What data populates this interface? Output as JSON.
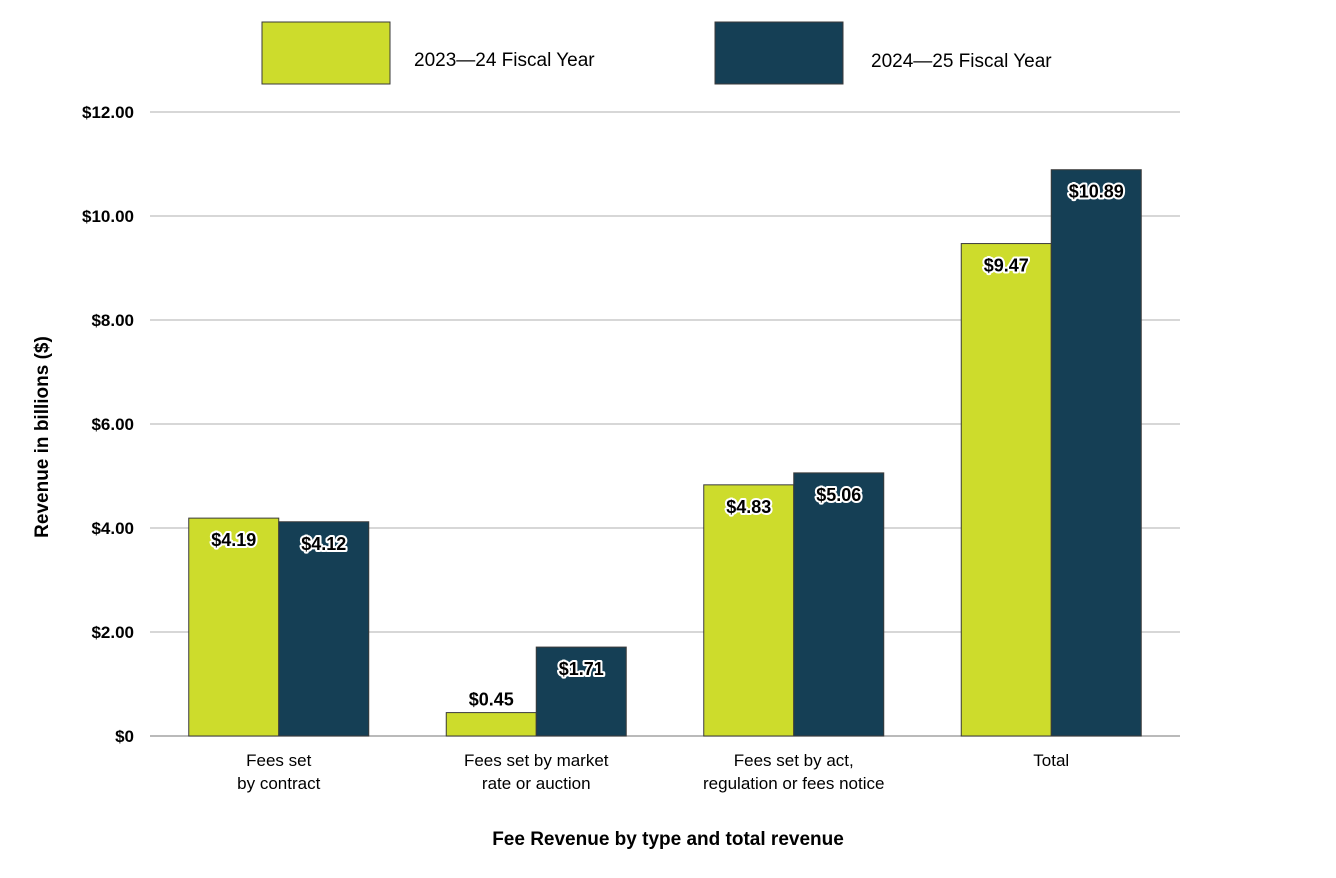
{
  "chart_data": {
    "type": "bar",
    "categories": [
      [
        "Fees set",
        "by contract"
      ],
      [
        "Fees set by market",
        "rate or auction"
      ],
      [
        "Fees set by act,",
        "regulation or fees notice"
      ],
      [
        "Total"
      ]
    ],
    "series": [
      {
        "name": "2023—24 Fiscal Year",
        "color": "#cddc2c",
        "values": [
          4.19,
          0.45,
          4.83,
          9.47
        ],
        "labels": [
          "$4.19",
          "$0.45",
          "$4.83",
          "$9.47"
        ]
      },
      {
        "name": "2024—25 Fiscal Year",
        "color": "#153f55",
        "values": [
          4.12,
          1.71,
          5.06,
          10.89
        ],
        "labels": [
          "$4.12",
          "$1.71",
          "$5.06",
          "$10.89"
        ]
      }
    ],
    "yticks": [
      0,
      2,
      4,
      6,
      8,
      10,
      12
    ],
    "ytick_labels": [
      "$0",
      "$2.00",
      "$4.00",
      "$6.00",
      "$8.00",
      "$10.00",
      "$12.00"
    ],
    "ylim": [
      0,
      12
    ],
    "xlabel": "Fee Revenue by type and total revenue",
    "ylabel": "Revenue in billions ($)",
    "grid": true,
    "legend_position": "top"
  }
}
